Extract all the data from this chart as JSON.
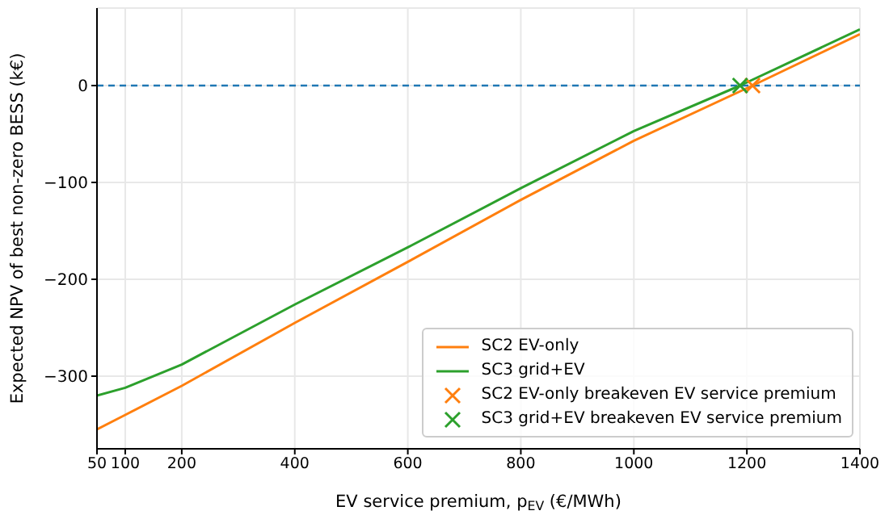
{
  "chart_data": {
    "type": "line",
    "xlabel": "EV service premium, p$_{EV}$ (€/MWh)",
    "ylabel": "Expected NPV of best non-zero BESS (k€)",
    "xlim": [
      50,
      1400
    ],
    "xticks": [
      {
        "value": 50,
        "label": "50"
      },
      {
        "value": 100,
        "label": "100"
      },
      200,
      400,
      600,
      800,
      1000,
      1200,
      1400
    ],
    "ylim": [
      -375,
      80
    ],
    "yticks": [
      -300,
      -200,
      -100,
      0
    ],
    "series": [
      {
        "name": "SC2 EV-only",
        "color": "#ff7f0e",
        "x": [
          50,
          100,
          200,
          400,
          600,
          800,
          1000,
          1210,
          1400
        ],
        "values": [
          -355,
          -340,
          -310,
          -245,
          -182,
          -118,
          -57,
          0,
          53
        ]
      },
      {
        "name": "SC3 grid+EV",
        "color": "#2ca02c",
        "x": [
          50,
          100,
          200,
          400,
          600,
          800,
          1000,
          1188,
          1400
        ],
        "values": [
          -320,
          -312,
          -288,
          -226,
          -167,
          -106,
          -47,
          0,
          58
        ]
      },
      {
        "name": "SC2 EV-only breakeven EV service premium",
        "type": "scatter",
        "marker": "cross",
        "color": "#ff7f0e",
        "x": [
          1210
        ],
        "values": [
          0
        ]
      },
      {
        "name": "SC3 grid+EV breakeven EV service premium",
        "type": "scatter",
        "marker": "cross",
        "color": "#2ca02c",
        "x": [
          1188
        ],
        "values": [
          0
        ]
      }
    ],
    "ref_lines": [
      {
        "axis": "y",
        "value": 0,
        "color": "#1f77b4",
        "line_style": "dashed"
      }
    ],
    "grid": true,
    "legend": "bottom right"
  }
}
